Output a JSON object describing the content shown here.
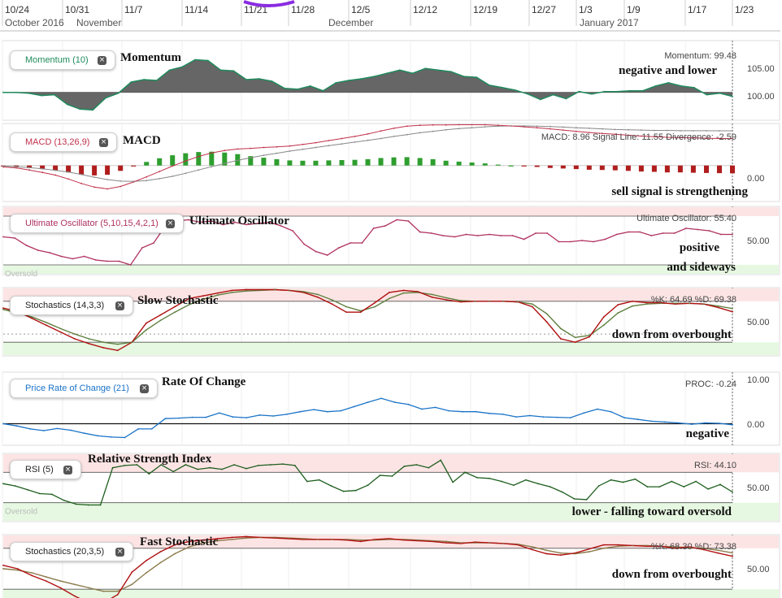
{
  "header": {
    "dates": [
      "10/24",
      "10/31",
      "11/7",
      "11/14",
      "11/21",
      "11/28",
      "12/5",
      "12/12",
      "12/19",
      "12/27",
      "1/3",
      "1/9",
      "1/17",
      "1/23"
    ],
    "months": [
      "October 2016",
      "November",
      "December",
      "January 2017"
    ]
  },
  "panels": {
    "momentum": {
      "legend": "Momentum (10)",
      "title": "Momentum",
      "readout": "Momentum: 99.48",
      "note": "negative and lower",
      "ticks": [
        "105.00",
        "100.00"
      ]
    },
    "macd": {
      "legend": "MACD (13,26,9)",
      "title": "MACD",
      "readout": "MACD: 8.96 Signal Line: 11.55 Divergence: -2.59",
      "note": "sell signal is strengthening",
      "ticks": [
        "0.00"
      ]
    },
    "ultimate": {
      "legend": "Ultimate Oscillator (5,10,15,4,2,1)",
      "title": "Ultimate Oscillator",
      "readout": "Ultimate Oscillator: 55.40",
      "note1": "positive",
      "note2": "and sideways",
      "zone": "Oversold",
      "ticks": [
        "50.00"
      ]
    },
    "slowstoch": {
      "legend": "Stochastics (14,3,3)",
      "title": "Slow Stochastic",
      "readout": "%K: 64.69 %D: 69.38",
      "note": "down from overbought",
      "ticks": [
        "50.00"
      ]
    },
    "proc": {
      "legend": "Price Rate of Change (21)",
      "title": "Rate Of Change",
      "readout": "PROC: -0.24",
      "note": "negative",
      "ticks": [
        "10.00",
        "0.00"
      ]
    },
    "rsi": {
      "legend": "RSI (5)",
      "title": "Relative Strength Index",
      "readout": "RSI: 44.10",
      "note": "lower - falling toward oversold",
      "zone": "Oversold",
      "ticks": [
        "50.00"
      ]
    },
    "faststoch": {
      "legend": "Stochastics (20,3,5)",
      "title": "Fast Stochastic",
      "readout": "%K: 68.30 %D: 73.38",
      "note": "down from overbought",
      "ticks": [
        "50.00"
      ]
    }
  },
  "chart_data": [
    {
      "type": "area",
      "name": "Momentum (10)",
      "ylim": [
        96.5,
        106.5
      ],
      "baseline": 100,
      "values": [
        100,
        100,
        99.9,
        99.6,
        99.7,
        98.5,
        97.9,
        97.8,
        99.3,
        99.9,
        101.3,
        101.6,
        101.5,
        102.8,
        103.2,
        104.1,
        104.0,
        102.8,
        102.7,
        101.6,
        101.7,
        101.4,
        100.5,
        100.4,
        100.8,
        100.2,
        101.2,
        101.5,
        101.7,
        102.0,
        102.4,
        102.8,
        102.4,
        103.0,
        102.8,
        102.6,
        102.0,
        101.9,
        100.9,
        100.6,
        100.3,
        99.8,
        99.1,
        99.7,
        99.2,
        100.1,
        99.8,
        100.1,
        100.1,
        100.2,
        100.2,
        100.8,
        101.2,
        100.8,
        100.6,
        99.7,
        99.9,
        99.5
      ]
    },
    {
      "type": "line",
      "name": "MACD (13,26,9)",
      "ylim": [
        -12,
        14
      ],
      "series": [
        {
          "name": "MACD",
          "values": [
            -0.5,
            -0.8,
            -1.5,
            -2.3,
            -3.2,
            -4.5,
            -6.0,
            -7.2,
            -7.8,
            -7.0,
            -5.5,
            -3.8,
            -2.0,
            -0.2,
            1.5,
            3.0,
            4.2,
            5.0,
            5.5,
            5.7,
            6.0,
            6.2,
            6.5,
            7.0,
            7.6,
            8.3,
            9.0,
            9.7,
            10.5,
            11.5,
            12.4,
            13.1,
            13.4,
            13.5,
            13.5,
            13.6,
            13.6,
            13.6,
            13.4,
            13.2,
            12.9,
            12.6,
            12.2,
            11.8,
            11.4,
            11.0,
            10.7,
            10.4,
            10.1,
            9.8,
            9.6,
            9.4,
            9.3,
            9.2,
            9.1,
            9.0,
            8.96
          ]
        },
        {
          "name": "Signal Line",
          "values": [
            -0.2,
            -0.4,
            -0.7,
            -1.1,
            -1.6,
            -2.2,
            -3.0,
            -3.9,
            -4.7,
            -5.2,
            -5.3,
            -5.0,
            -4.4,
            -3.6,
            -2.6,
            -1.5,
            -0.4,
            0.7,
            1.7,
            2.6,
            3.4,
            4.1,
            4.8,
            5.4,
            6.0,
            6.6,
            7.2,
            7.8,
            8.4,
            9.0,
            9.7,
            10.3,
            10.9,
            11.4,
            11.9,
            12.3,
            12.6,
            12.9,
            13.1,
            13.2,
            13.2,
            13.1,
            13.0,
            12.8,
            12.6,
            12.4,
            12.2,
            12.0,
            11.9,
            11.8,
            11.7,
            11.7,
            11.6,
            11.6,
            11.6,
            11.55,
            11.55
          ]
        }
      ],
      "histogram": [
        -0.3,
        -0.4,
        -0.8,
        -1.2,
        -1.6,
        -2.3,
        -3.0,
        -3.3,
        -3.1,
        -1.8,
        -0.2,
        1.2,
        2.4,
        3.4,
        4.1,
        4.5,
        4.6,
        4.3,
        3.8,
        3.1,
        2.6,
        2.1,
        1.7,
        1.6,
        1.6,
        1.7,
        1.8,
        1.9,
        2.1,
        2.5,
        2.7,
        2.8,
        2.5,
        2.1,
        1.6,
        1.3,
        1.0,
        0.7,
        0.3,
        0.0,
        -0.3,
        -0.5,
        -0.8,
        -1.0,
        -1.2,
        -1.4,
        -1.5,
        -1.6,
        -1.8,
        -2.0,
        -2.1,
        -2.3,
        -2.3,
        -2.4,
        -2.5,
        -2.55,
        -2.59
      ]
    },
    {
      "type": "line",
      "name": "Ultimate Oscillator (5,10,15,4,2,1)",
      "ylim": [
        22,
        78
      ],
      "bands": {
        "overbought": 70,
        "oversold": 30
      },
      "values": [
        53,
        52,
        46,
        42,
        40,
        37,
        35,
        37,
        34,
        33,
        33,
        30,
        44,
        48,
        62,
        66,
        67,
        65,
        66,
        63,
        65,
        63,
        64,
        65,
        62,
        58,
        47,
        41,
        38,
        44,
        48,
        48,
        60,
        62,
        67,
        66,
        57,
        56,
        54,
        53,
        55,
        54,
        55,
        54,
        54,
        51,
        56,
        56,
        49,
        49,
        50,
        49,
        51,
        55,
        57,
        57,
        54,
        56,
        56,
        60,
        59,
        58,
        55,
        55
      ]
    },
    {
      "type": "line",
      "name": "Stochastics (14,3,3)",
      "ylim": [
        0,
        100
      ],
      "bands": {
        "overbought": 80,
        "oversold": 20
      },
      "series": [
        {
          "name": "%K",
          "values": [
            70,
            65,
            55,
            45,
            35,
            25,
            18,
            12,
            8,
            20,
            48,
            60,
            72,
            84,
            88,
            92,
            96,
            97,
            97,
            97,
            96,
            93,
            86,
            76,
            64,
            64,
            78,
            93,
            96,
            94,
            86,
            82,
            79,
            80,
            80,
            80,
            79,
            72,
            50,
            25,
            20,
            28,
            57,
            75,
            80,
            78,
            78,
            76,
            77,
            76,
            71,
            64.69
          ]
        },
        {
          "name": "%D",
          "values": [
            68,
            63,
            57,
            49,
            40,
            32,
            25,
            20,
            17,
            20,
            38,
            52,
            64,
            75,
            83,
            89,
            93,
            95,
            96,
            97,
            96,
            94,
            90,
            82,
            72,
            66,
            72,
            84,
            92,
            93,
            90,
            85,
            81,
            80,
            80,
            80,
            79,
            76,
            62,
            40,
            27,
            30,
            45,
            63,
            73,
            76,
            77,
            77,
            77,
            76,
            73,
            69.38
          ]
        }
      ]
    },
    {
      "type": "line",
      "name": "Price Rate of Change (21)",
      "ylim": [
        -5,
        12
      ],
      "values": [
        0,
        -0.5,
        -1.2,
        -1.6,
        -1.1,
        -1.5,
        -2.2,
        -2.8,
        -3.1,
        -3.2,
        -1.2,
        -1.2,
        1.2,
        1.3,
        1.5,
        1.5,
        2.5,
        1.6,
        1.4,
        2.0,
        1.8,
        2.2,
        2.8,
        3.3,
        2.8,
        3.0,
        4.0,
        5.0,
        5.9,
        5.0,
        4.5,
        3.4,
        3.8,
        3.0,
        2.8,
        2.8,
        2.4,
        2.2,
        1.6,
        1.9,
        1.6,
        1.5,
        1.4,
        2.5,
        3.4,
        2.8,
        1.4,
        1.0,
        0.6,
        0.4,
        0.2,
        -0.1,
        0.2,
        0.1,
        -0.24
      ]
    },
    {
      "type": "line",
      "name": "RSI (5)",
      "ylim": [
        5,
        95
      ],
      "bands": {
        "overbought": 70,
        "oversold": 30
      },
      "values": [
        55,
        52,
        47,
        42,
        41,
        33,
        28,
        27,
        27,
        76,
        79,
        80,
        68,
        80,
        71,
        80,
        74,
        76,
        74,
        80,
        75,
        79,
        80,
        81,
        79,
        58,
        60,
        52,
        45,
        46,
        53,
        66,
        65,
        78,
        80,
        76,
        86,
        57,
        70,
        63,
        62,
        58,
        53,
        60,
        55,
        51,
        44,
        35,
        34,
        52,
        60,
        57,
        61,
        51,
        51,
        58,
        51,
        58,
        48,
        54,
        44.1
      ]
    },
    {
      "type": "line",
      "name": "Stochastics (20,3,5)",
      "ylim": [
        0,
        100
      ],
      "bands": {
        "overbought": 80,
        "oversold": 20
      },
      "series": [
        {
          "name": "%K",
          "values": [
            55,
            50,
            40,
            32,
            22,
            10,
            0,
            0,
            12,
            45,
            62,
            75,
            85,
            90,
            92,
            94,
            96,
            97,
            96,
            95,
            94,
            93,
            93,
            93,
            92,
            90,
            93,
            94,
            92,
            91,
            90,
            88,
            87,
            89,
            88,
            87,
            85,
            78,
            72,
            70,
            73,
            79,
            85,
            85,
            84,
            83,
            83,
            80,
            82,
            78,
            73,
            68.3
          ]
        },
        {
          "name": "%D",
          "values": [
            50,
            48,
            44,
            38,
            32,
            27,
            22,
            17,
            17,
            27,
            44,
            59,
            72,
            82,
            88,
            91,
            93,
            95,
            96,
            96,
            95,
            94,
            93,
            93,
            93,
            92,
            92,
            93,
            93,
            92,
            91,
            90,
            88,
            88,
            88,
            87,
            86,
            82,
            77,
            73,
            72,
            75,
            80,
            83,
            84,
            84,
            83,
            82,
            81,
            80,
            77,
            73.38
          ]
        }
      ]
    }
  ]
}
